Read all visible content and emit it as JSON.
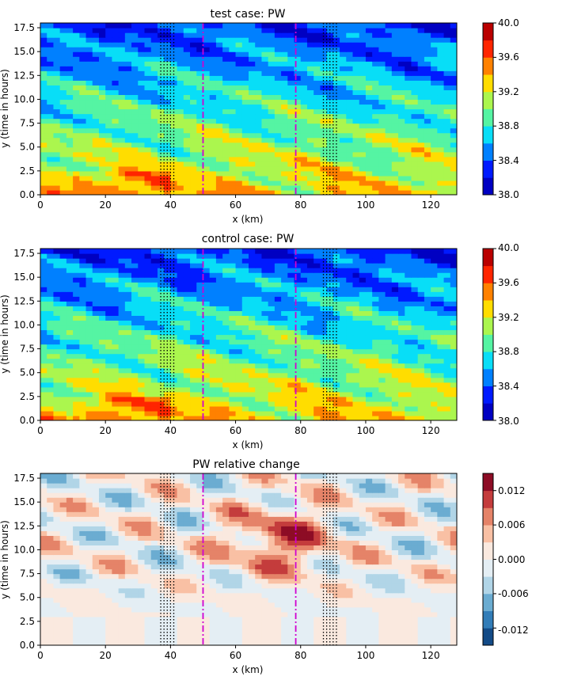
{
  "figure": {
    "panels": [
      {
        "title": "test case: PW",
        "xlabel": "x (km)",
        "ylabel": "y (time in hours)",
        "colorbar": {
          "colormap": "jet",
          "range": [
            38.0,
            40.0
          ],
          "ticks": [
            "38.0",
            "38.4",
            "38.8",
            "39.2",
            "39.6",
            "40.0"
          ]
        }
      },
      {
        "title": "control case: PW",
        "xlabel": "x (km)",
        "ylabel": "y (time in hours)",
        "colorbar": {
          "colormap": "jet",
          "range": [
            38.0,
            40.0
          ],
          "ticks": [
            "38.0",
            "38.4",
            "38.8",
            "39.2",
            "39.6",
            "40.0"
          ]
        }
      },
      {
        "title": "PW relative change",
        "xlabel": "x (km)",
        "ylabel": "y (time in hours)",
        "colorbar": {
          "colormap": "RdBu_r",
          "range": [
            -0.015,
            0.015
          ],
          "ticks": [
            "-0.012",
            "-0.006",
            "0.000",
            "0.006",
            "0.012"
          ]
        }
      }
    ]
  },
  "chart_data": [
    {
      "type": "heatmap",
      "title": "test case: PW",
      "xlabel": "x (km)",
      "ylabel": "y (time in hours)",
      "xlim": [
        0,
        128
      ],
      "ylim": [
        0,
        18
      ],
      "xticks": [
        0,
        20,
        40,
        60,
        80,
        100,
        120
      ],
      "yticks": [
        0.0,
        2.5,
        5.0,
        7.5,
        10.0,
        12.5,
        15.0,
        17.5
      ],
      "colorbar_range": [
        38.0,
        40.0
      ],
      "colorbar_levels": [
        38.0,
        38.2,
        38.4,
        38.6,
        38.8,
        39.0,
        39.2,
        39.4,
        39.6,
        39.8,
        40.0
      ],
      "field_description": "diagonal bands tilting down to the right; low PW (dark blue) near top, higher PW (yellow) near bottom-left and center",
      "vertical_lines": {
        "dotted_black_x": [
          37,
          38,
          39,
          40,
          41,
          87,
          88,
          89,
          90,
          91
        ],
        "dashdot_magenta_x": [
          50,
          78.5
        ]
      }
    },
    {
      "type": "heatmap",
      "title": "control case: PW",
      "xlabel": "x (km)",
      "ylabel": "y (time in hours)",
      "xlim": [
        0,
        128
      ],
      "ylim": [
        0,
        18
      ],
      "xticks": [
        0,
        20,
        40,
        60,
        80,
        100,
        120
      ],
      "yticks": [
        0.0,
        2.5,
        5.0,
        7.5,
        10.0,
        12.5,
        15.0,
        17.5
      ],
      "colorbar_range": [
        38.0,
        40.0
      ],
      "colorbar_levels": [
        38.0,
        38.2,
        38.4,
        38.6,
        38.8,
        39.0,
        39.2,
        39.4,
        39.6,
        39.8,
        40.0
      ],
      "field_description": "diagonal bands similar to test case",
      "vertical_lines": {
        "dotted_black_x": [
          37,
          38,
          39,
          40,
          41,
          87,
          88,
          89,
          90,
          91
        ],
        "dashdot_magenta_x": [
          50,
          78.5
        ]
      }
    },
    {
      "type": "heatmap",
      "title": "PW relative change",
      "xlabel": "x (km)",
      "ylabel": "y (time in hours)",
      "xlim": [
        0,
        128
      ],
      "ylim": [
        0,
        18
      ],
      "xticks": [
        0,
        20,
        40,
        60,
        80,
        100,
        120
      ],
      "yticks": [
        0.0,
        2.5,
        5.0,
        7.5,
        10.0,
        12.5,
        15.0,
        17.5
      ],
      "colorbar_range": [
        -0.015,
        0.015
      ],
      "colorbar_levels": [
        -0.015,
        -0.012,
        -0.009,
        -0.006,
        -0.003,
        0.0,
        0.003,
        0.006,
        0.009,
        0.012,
        0.015
      ],
      "field_description": "near zero below y=4; alternating red and blue diagonal streaks above, strongest red near x=70-80, y=10-12",
      "vertical_lines": {
        "dotted_black_x": [
          37,
          38,
          39,
          40,
          41,
          87,
          88,
          89,
          90,
          91
        ],
        "dashdot_magenta_x": [
          50,
          78.5
        ]
      }
    }
  ]
}
